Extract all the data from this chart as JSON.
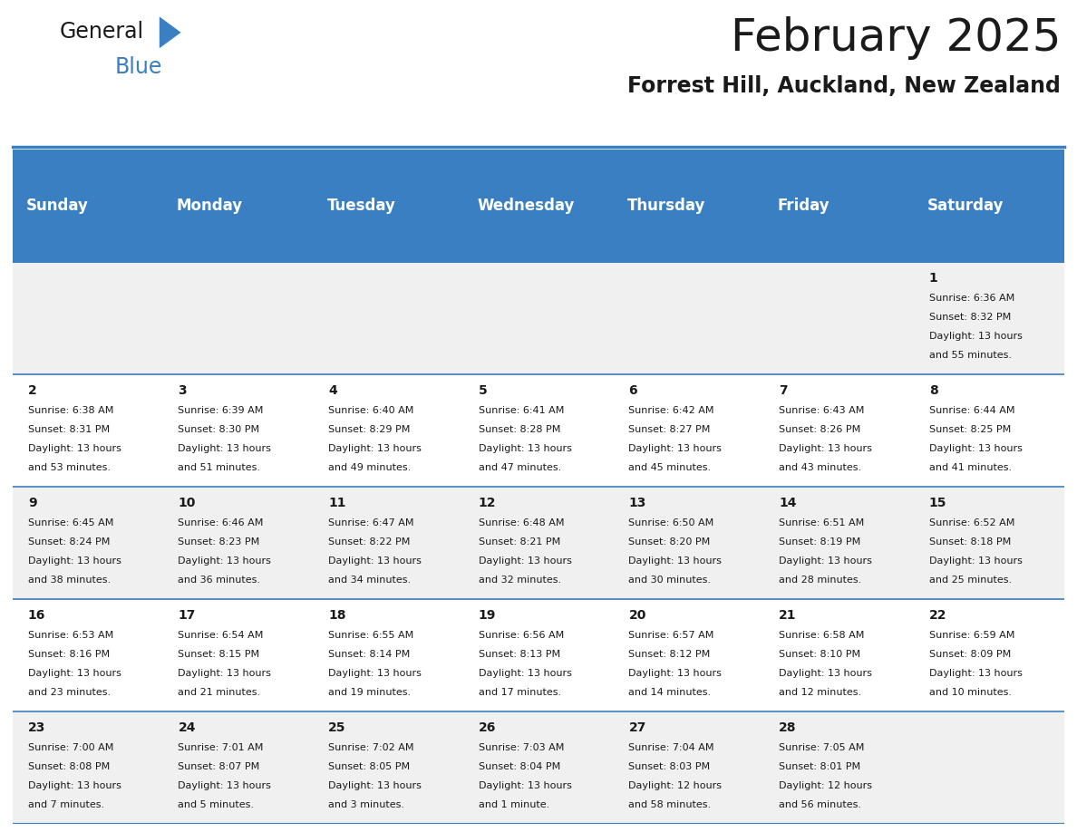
{
  "title": "February 2025",
  "subtitle": "Forrest Hill, Auckland, New Zealand",
  "header_bg": "#3A7FC1",
  "header_text": "#FFFFFF",
  "row_bg_even": "#F0F0F0",
  "row_bg_odd": "#FFFFFF",
  "border_color": "#3A7FC1",
  "day_headers": [
    "Sunday",
    "Monday",
    "Tuesday",
    "Wednesday",
    "Thursday",
    "Friday",
    "Saturday"
  ],
  "days": [
    {
      "day": 1,
      "col": 6,
      "row": 0,
      "sunrise": "6:36 AM",
      "sunset": "8:32 PM",
      "daylight": "13 hours and 55 minutes."
    },
    {
      "day": 2,
      "col": 0,
      "row": 1,
      "sunrise": "6:38 AM",
      "sunset": "8:31 PM",
      "daylight": "13 hours and 53 minutes."
    },
    {
      "day": 3,
      "col": 1,
      "row": 1,
      "sunrise": "6:39 AM",
      "sunset": "8:30 PM",
      "daylight": "13 hours and 51 minutes."
    },
    {
      "day": 4,
      "col": 2,
      "row": 1,
      "sunrise": "6:40 AM",
      "sunset": "8:29 PM",
      "daylight": "13 hours and 49 minutes."
    },
    {
      "day": 5,
      "col": 3,
      "row": 1,
      "sunrise": "6:41 AM",
      "sunset": "8:28 PM",
      "daylight": "13 hours and 47 minutes."
    },
    {
      "day": 6,
      "col": 4,
      "row": 1,
      "sunrise": "6:42 AM",
      "sunset": "8:27 PM",
      "daylight": "13 hours and 45 minutes."
    },
    {
      "day": 7,
      "col": 5,
      "row": 1,
      "sunrise": "6:43 AM",
      "sunset": "8:26 PM",
      "daylight": "13 hours and 43 minutes."
    },
    {
      "day": 8,
      "col": 6,
      "row": 1,
      "sunrise": "6:44 AM",
      "sunset": "8:25 PM",
      "daylight": "13 hours and 41 minutes."
    },
    {
      "day": 9,
      "col": 0,
      "row": 2,
      "sunrise": "6:45 AM",
      "sunset": "8:24 PM",
      "daylight": "13 hours and 38 minutes."
    },
    {
      "day": 10,
      "col": 1,
      "row": 2,
      "sunrise": "6:46 AM",
      "sunset": "8:23 PM",
      "daylight": "13 hours and 36 minutes."
    },
    {
      "day": 11,
      "col": 2,
      "row": 2,
      "sunrise": "6:47 AM",
      "sunset": "8:22 PM",
      "daylight": "13 hours and 34 minutes."
    },
    {
      "day": 12,
      "col": 3,
      "row": 2,
      "sunrise": "6:48 AM",
      "sunset": "8:21 PM",
      "daylight": "13 hours and 32 minutes."
    },
    {
      "day": 13,
      "col": 4,
      "row": 2,
      "sunrise": "6:50 AM",
      "sunset": "8:20 PM",
      "daylight": "13 hours and 30 minutes."
    },
    {
      "day": 14,
      "col": 5,
      "row": 2,
      "sunrise": "6:51 AM",
      "sunset": "8:19 PM",
      "daylight": "13 hours and 28 minutes."
    },
    {
      "day": 15,
      "col": 6,
      "row": 2,
      "sunrise": "6:52 AM",
      "sunset": "8:18 PM",
      "daylight": "13 hours and 25 minutes."
    },
    {
      "day": 16,
      "col": 0,
      "row": 3,
      "sunrise": "6:53 AM",
      "sunset": "8:16 PM",
      "daylight": "13 hours and 23 minutes."
    },
    {
      "day": 17,
      "col": 1,
      "row": 3,
      "sunrise": "6:54 AM",
      "sunset": "8:15 PM",
      "daylight": "13 hours and 21 minutes."
    },
    {
      "day": 18,
      "col": 2,
      "row": 3,
      "sunrise": "6:55 AM",
      "sunset": "8:14 PM",
      "daylight": "13 hours and 19 minutes."
    },
    {
      "day": 19,
      "col": 3,
      "row": 3,
      "sunrise": "6:56 AM",
      "sunset": "8:13 PM",
      "daylight": "13 hours and 17 minutes."
    },
    {
      "day": 20,
      "col": 4,
      "row": 3,
      "sunrise": "6:57 AM",
      "sunset": "8:12 PM",
      "daylight": "13 hours and 14 minutes."
    },
    {
      "day": 21,
      "col": 5,
      "row": 3,
      "sunrise": "6:58 AM",
      "sunset": "8:10 PM",
      "daylight": "13 hours and 12 minutes."
    },
    {
      "day": 22,
      "col": 6,
      "row": 3,
      "sunrise": "6:59 AM",
      "sunset": "8:09 PM",
      "daylight": "13 hours and 10 minutes."
    },
    {
      "day": 23,
      "col": 0,
      "row": 4,
      "sunrise": "7:00 AM",
      "sunset": "8:08 PM",
      "daylight": "13 hours and 7 minutes."
    },
    {
      "day": 24,
      "col": 1,
      "row": 4,
      "sunrise": "7:01 AM",
      "sunset": "8:07 PM",
      "daylight": "13 hours and 5 minutes."
    },
    {
      "day": 25,
      "col": 2,
      "row": 4,
      "sunrise": "7:02 AM",
      "sunset": "8:05 PM",
      "daylight": "13 hours and 3 minutes."
    },
    {
      "day": 26,
      "col": 3,
      "row": 4,
      "sunrise": "7:03 AM",
      "sunset": "8:04 PM",
      "daylight": "13 hours and 1 minute."
    },
    {
      "day": 27,
      "col": 4,
      "row": 4,
      "sunrise": "7:04 AM",
      "sunset": "8:03 PM",
      "daylight": "12 hours and 58 minutes."
    },
    {
      "day": 28,
      "col": 5,
      "row": 4,
      "sunrise": "7:05 AM",
      "sunset": "8:01 PM",
      "daylight": "12 hours and 56 minutes."
    }
  ],
  "num_rows": 5,
  "num_cols": 7,
  "logo_text1": "General",
  "logo_text2": "Blue",
  "logo_text1_color": "#1a1a1a",
  "logo_text2_color": "#3A7FC1",
  "logo_triangle_color": "#3A7FC1",
  "title_fontsize": 36,
  "subtitle_fontsize": 17,
  "header_fontsize": 12,
  "day_num_fontsize": 10,
  "cell_text_fontsize": 8
}
